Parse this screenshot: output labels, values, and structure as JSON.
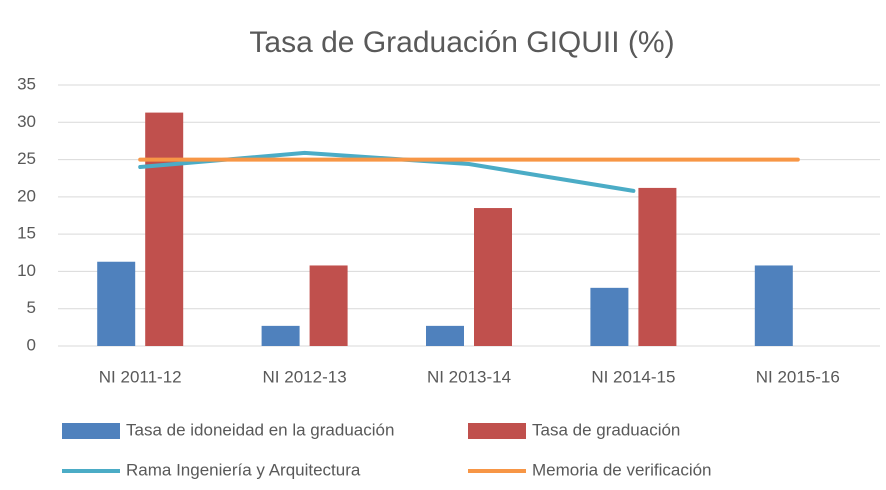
{
  "chart_data": {
    "type": "bar",
    "title": "Tasa de Graduación GIQUII (%)",
    "categories": [
      "NI 2011-12",
      "NI 2012-13",
      "NI 2013-14",
      "NI 2014-15",
      "NI 2015-16"
    ],
    "series": [
      {
        "name": "Tasa de idoneidad en la graduación",
        "type": "bar",
        "color": "#4f81bd",
        "values": [
          11.3,
          2.7,
          2.7,
          7.8,
          10.8
        ]
      },
      {
        "name": "Tasa de graduación",
        "type": "bar",
        "color": "#c0504d",
        "values": [
          31.3,
          10.8,
          18.5,
          21.2,
          null
        ]
      },
      {
        "name": "Rama Ingeniería y Arquitectura",
        "type": "line",
        "color": "#4bacc6",
        "values": [
          24,
          25.9,
          24.4,
          20.8,
          null
        ]
      },
      {
        "name": "Memoria de verificación",
        "type": "line",
        "color": "#f79646",
        "values": [
          25,
          25,
          25,
          25,
          25
        ]
      }
    ],
    "ylim": [
      0,
      35
    ],
    "yticks": [
      0,
      5,
      10,
      15,
      20,
      25,
      30,
      35
    ],
    "grid": true
  }
}
